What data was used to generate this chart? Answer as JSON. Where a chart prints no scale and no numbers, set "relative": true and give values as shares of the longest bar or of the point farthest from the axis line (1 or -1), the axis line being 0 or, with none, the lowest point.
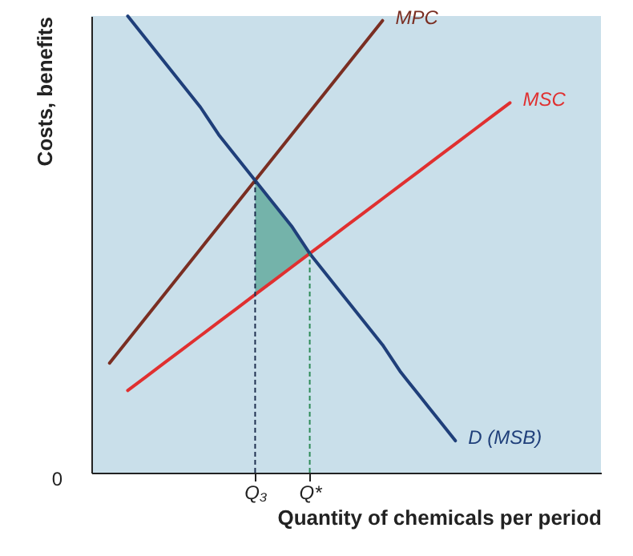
{
  "chart_data": {
    "type": "line",
    "relative": true,
    "xlabel": "Quantity of chemicals per period",
    "ylabel": "Costs, benefits",
    "categories": [
      null,
      null,
      null,
      null,
      null,
      null,
      null,
      null,
      null,
      "Q₃",
      null,
      null,
      "Q*",
      null,
      null,
      null,
      null,
      null,
      null,
      null,
      null,
      null,
      null,
      null,
      null,
      null,
      null,
      null,
      null
    ],
    "series": [
      {
        "type": "area",
        "color": "#5fa89a",
        "values": [
          null,
          null,
          null,
          null,
          null,
          null,
          null,
          null,
          null,
          0.64,
          0.59,
          0.54,
          0.48,
          null,
          null,
          null,
          null,
          null,
          null,
          null,
          null,
          null,
          null,
          null,
          null,
          null,
          null,
          null,
          null
        ]
      },
      {
        "name": "MPC",
        "color": "#7a2e22",
        "values": [
          null,
          0.24,
          0.29,
          0.34,
          0.39,
          0.44,
          0.49,
          0.54,
          0.59,
          0.64,
          0.69,
          0.74,
          0.79,
          0.84,
          0.89,
          0.94,
          0.99,
          null,
          null,
          null,
          null,
          null,
          null,
          null,
          null,
          null,
          null,
          null,
          null
        ]
      },
      {
        "name": "MSC",
        "color": "#e03030",
        "values": [
          null,
          null,
          0.18,
          0.21,
          0.24,
          0.27,
          0.3,
          0.33,
          0.36,
          0.39,
          0.42,
          0.45,
          0.48,
          0.51,
          0.54,
          0.57,
          0.6,
          0.63,
          0.66,
          0.69,
          0.72,
          0.75,
          0.78,
          0.81,
          null,
          null,
          null,
          null,
          null
        ]
      },
      {
        "name": "D (MSB)",
        "color": "#1f3f7a",
        "values": [
          null,
          null,
          1.0,
          0.95,
          0.9,
          0.85,
          0.8,
          0.74,
          0.69,
          0.64,
          0.59,
          0.54,
          0.48,
          0.43,
          0.38,
          0.33,
          0.28,
          0.22,
          0.17,
          0.12,
          0.07,
          null,
          null,
          null,
          null,
          null,
          null,
          null,
          null
        ]
      }
    ],
    "ref_lines": [
      {
        "axis": "x",
        "value": "Q₃",
        "color": "#1f3050",
        "line_style": "dashed"
      },
      {
        "axis": "x",
        "value": "Q*",
        "color": "#2e8b57",
        "line_style": "dashed"
      }
    ],
    "annotations": [
      "0"
    ],
    "grid": false
  }
}
